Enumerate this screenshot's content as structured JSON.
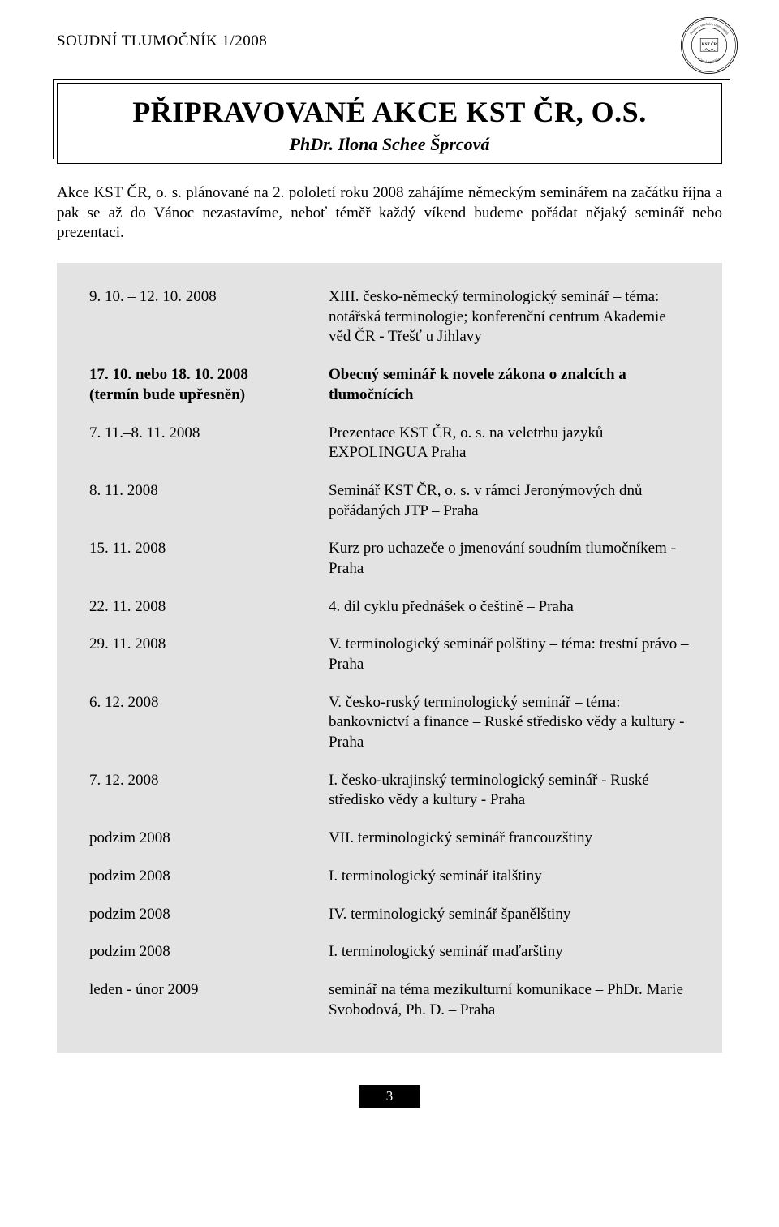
{
  "header": {
    "journal": "SOUDNÍ TLUMOČNÍK 1/2008",
    "seal_text_outer": "Komora soudních tlumočníků",
    "seal_text_inner": "KST ČR",
    "seal_text_bottom": "Česká republika"
  },
  "title_box": {
    "title": "PŘIPRAVOVANÉ AKCE KST ČR, O.S.",
    "subtitle": "PhDr. Ilona Schee Šprcová"
  },
  "intro": "Akce KST ČR, o. s. plánované na 2. pololetí roku 2008 zahájíme německým seminářem na začátku října a pak se až do Vánoc nezastavíme, neboť téměř každý víkend budeme pořádat nějaký seminář nebo prezentaci.",
  "schedule": [
    {
      "date": "9. 10. – 12. 10. 2008",
      "date_note": "",
      "desc": "XIII. česko-německý terminologický seminář – téma: notářská terminologie; konferenční centrum Akademie věd ČR - Třešť u Jihlavy",
      "bold": false
    },
    {
      "date": "17. 10. nebo 18. 10. 2008",
      "date_note": "(termín bude upřesněn)",
      "desc": "Obecný seminář k novele zákona o znalcích a tlumočnících",
      "bold": true
    },
    {
      "date": "7. 11.–8. 11. 2008",
      "date_note": "",
      "desc": "Prezentace KST ČR, o. s. na veletrhu jazyků EXPOLINGUA Praha",
      "bold": false
    },
    {
      "date": "8. 11. 2008",
      "date_note": "",
      "desc": "Seminář KST ČR, o. s. v rámci Jeronýmových dnů pořádaných JTP – Praha",
      "bold": false
    },
    {
      "date": "15. 11. 2008",
      "date_note": "",
      "desc": "Kurz pro uchazeče o jmenování soudním tlumočníkem - Praha",
      "bold": false
    },
    {
      "date": "22. 11. 2008",
      "date_note": "",
      "desc": "4. díl cyklu přednášek o češtině – Praha",
      "bold": false
    },
    {
      "date": "29. 11. 2008",
      "date_note": "",
      "desc": "V. terminologický seminář polštiny – téma: trestní právo – Praha",
      "bold": false
    },
    {
      "date": "6. 12. 2008",
      "date_note": "",
      "desc": "V. česko-ruský terminologický seminář – téma: bankovnictví a finance – Ruské středisko vědy a kultury - Praha",
      "bold": false
    },
    {
      "date": "7. 12. 2008",
      "date_note": "",
      "desc": "I. česko-ukrajinský terminologický seminář - Ruské středisko vědy a kultury - Praha",
      "bold": false
    },
    {
      "date": "podzim 2008",
      "date_note": "",
      "desc": "VII. terminologický seminář francouzštiny",
      "bold": false
    },
    {
      "date": "podzim 2008",
      "date_note": "",
      "desc": "I. terminologický seminář italštiny",
      "bold": false
    },
    {
      "date": "podzim 2008",
      "date_note": "",
      "desc": "IV. terminologický seminář španělštiny",
      "bold": false
    },
    {
      "date": "podzim 2008",
      "date_note": "",
      "desc": "I. terminologický seminář maďarštiny",
      "bold": false
    },
    {
      "date": "leden - únor 2009",
      "date_note": "",
      "desc": "seminář na téma mezikulturní komunikace – PhDr. Marie Svobodová, Ph. D. – Praha",
      "bold": false
    }
  ],
  "page_number": "3",
  "colors": {
    "schedule_bg": "#e3e3e3",
    "text": "#000000",
    "page_bg": "#ffffff",
    "footer_bg": "#000000",
    "footer_text": "#ffffff"
  }
}
